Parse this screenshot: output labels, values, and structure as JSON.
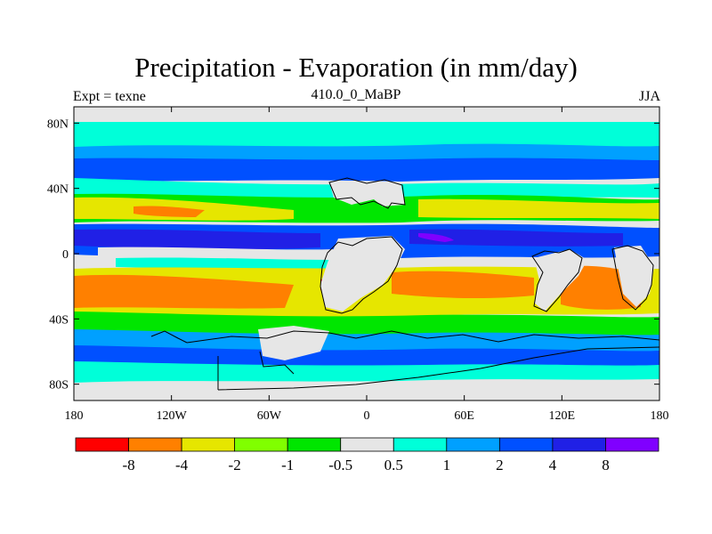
{
  "title": "Precipitation - Evaporation (in mm/day)",
  "subtitle_left": "Expt = texne",
  "subtitle_center": "410.0_0_MaBP",
  "subtitle_right": "JJA",
  "map": {
    "lon_ticks": [
      "180",
      "120W",
      "60W",
      "0",
      "60E",
      "120E",
      "180"
    ],
    "lat_ticks": [
      "80N",
      "40N",
      "0",
      "40S",
      "80S"
    ],
    "lon_values": [
      -180,
      -120,
      -60,
      0,
      60,
      120,
      180
    ],
    "lat_values": [
      80,
      40,
      0,
      -40,
      -80
    ],
    "lon_range": [
      -180,
      180
    ],
    "lat_range": [
      -90,
      90
    ]
  },
  "colorbar": {
    "colors": [
      "#ff0000",
      "#ff8000",
      "#e6e600",
      "#80ff00",
      "#00e600",
      "#e6e6e6",
      "#00ffd9",
      "#00a0ff",
      "#0050ff",
      "#2020e6",
      "#8000ff"
    ],
    "labels": [
      "-8",
      "-4",
      "-2",
      "-1",
      "-0.5",
      "0.5",
      "1",
      "2",
      "4",
      "8"
    ]
  }
}
